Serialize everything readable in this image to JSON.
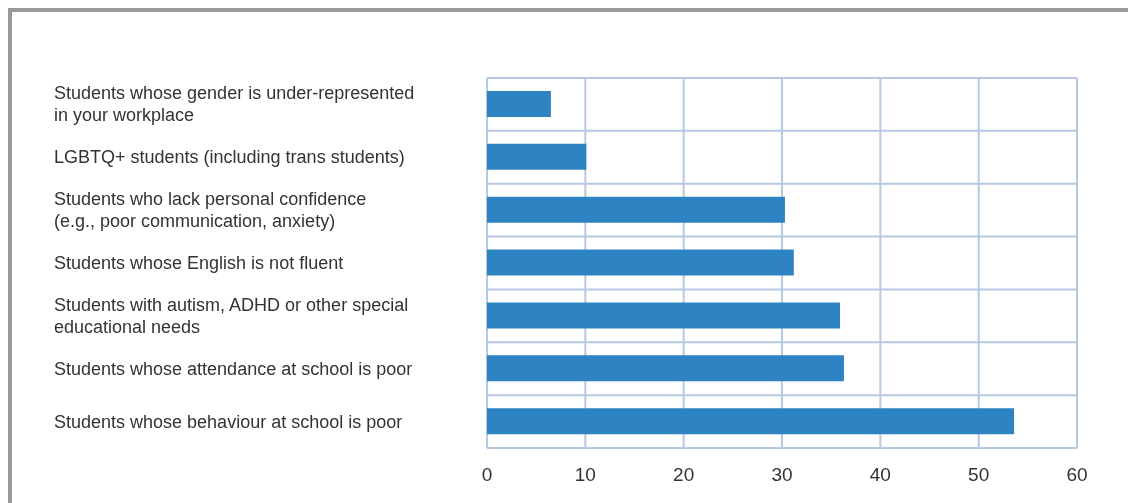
{
  "chart_data": {
    "type": "bar",
    "orientation": "horizontal",
    "categories": [
      "Students whose gender is under-represented in your workplace",
      "LGBTQ+ students (including trans students)",
      "Students who lack personal confidence (e.g., poor communication, anxiety)",
      "Students whose English is not fluent",
      "Students with autism, ADHD or other special educational needs",
      "Students whose attendance at school is poor",
      "Students whose behaviour at school is poor"
    ],
    "values": [
      6.5,
      10.1,
      30.3,
      31.2,
      35.9,
      36.3,
      53.6
    ],
    "color": "#2e83c3",
    "xlim": [
      0,
      60
    ],
    "xticks": [
      0,
      10,
      20,
      30,
      40,
      50,
      60
    ],
    "grid": true
  }
}
